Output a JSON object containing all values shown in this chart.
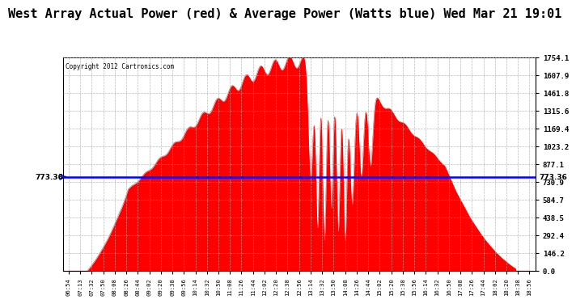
{
  "title": "West Array Actual Power (red) & Average Power (Watts blue) Wed Mar 21 19:01",
  "copyright": "Copyright 2012 Cartronics.com",
  "avg_power": 773.36,
  "y_max": 1754.1,
  "y_min": 0.0,
  "y_ticks": [
    0.0,
    146.2,
    292.4,
    438.5,
    584.7,
    730.9,
    877.1,
    1023.2,
    1169.4,
    1315.6,
    1461.8,
    1607.9,
    1754.1
  ],
  "x_labels": [
    "06:54",
    "07:13",
    "07:32",
    "07:50",
    "08:08",
    "08:26",
    "08:44",
    "09:02",
    "09:20",
    "09:38",
    "09:56",
    "10:14",
    "10:32",
    "10:50",
    "11:08",
    "11:26",
    "11:44",
    "12:02",
    "12:20",
    "12:38",
    "12:56",
    "13:14",
    "13:32",
    "13:50",
    "14:08",
    "14:26",
    "14:44",
    "15:02",
    "15:20",
    "15:38",
    "15:56",
    "16:14",
    "16:32",
    "16:50",
    "17:08",
    "17:26",
    "17:44",
    "18:02",
    "18:20",
    "18:38",
    "18:56"
  ],
  "background_color": "#ffffff",
  "area_color": "#ff0000",
  "avg_line_color": "#0000ff",
  "grid_color": "#aaaaaa",
  "title_fontsize": 11,
  "avg_label": "773.36"
}
